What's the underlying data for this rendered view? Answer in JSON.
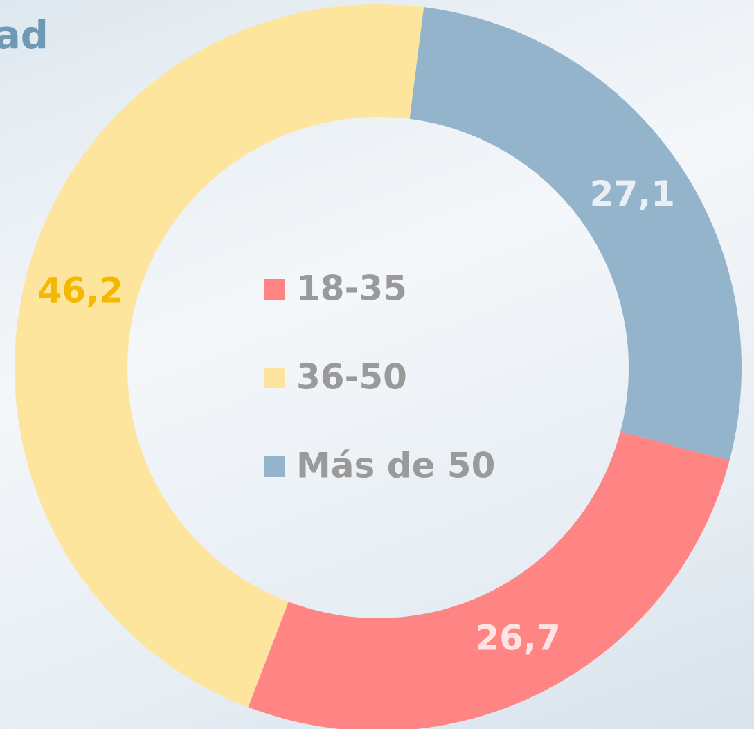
{
  "chart_data": {
    "type": "donut",
    "title": "ad",
    "categories": [
      "18-35",
      "36-50",
      "Más de 50"
    ],
    "values": [
      26.7,
      46.2,
      27.1
    ],
    "value_labels": [
      "26,7",
      "46,2",
      "27,1"
    ],
    "colors": [
      "#ff8585",
      "#fde59e",
      "#93b4cb"
    ],
    "label_colors": [
      "#fde3e3",
      "#f5b800",
      "#e9eff4"
    ],
    "legend": "center"
  }
}
